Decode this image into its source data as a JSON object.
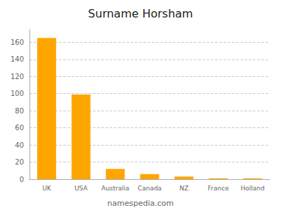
{
  "chart_data": {
    "type": "bar",
    "title": "Surname Horsham",
    "categories": [
      "UK",
      "USA",
      "Australia",
      "Canada",
      "NZ",
      "France",
      "Holland"
    ],
    "values": [
      165,
      99,
      12,
      6,
      3,
      1,
      1
    ],
    "color": "#FFA500",
    "ylim": [
      0,
      175
    ],
    "yticks": [
      0,
      20,
      40,
      60,
      80,
      100,
      120,
      140,
      160
    ],
    "grid": true,
    "annotations": [
      "namespedia.com"
    ]
  }
}
